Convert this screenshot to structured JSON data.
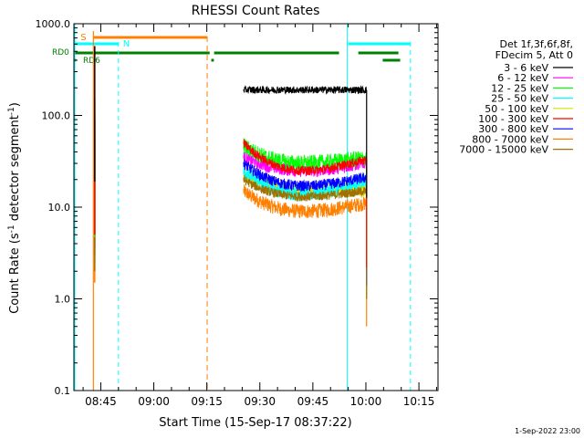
{
  "chart_data": {
    "type": "line",
    "title": "RHESSI Count Rates",
    "xlabel": "Start Time (15-Sep-17 08:37:22)",
    "ylabel_main": "Count Rate (s",
    "ylabel_sup": "-1",
    "ylabel_tail": " detector segment",
    "ylabel_sup2": "-1",
    "ylabel_close": ")",
    "y_scale": "log",
    "ylim": [
      0.1,
      1000
    ],
    "xlim_minutes": [
      517.4,
      620.4
    ],
    "x_ticks": [
      {
        "label": "08:45",
        "minute": 525
      },
      {
        "label": "09:00",
        "minute": 540
      },
      {
        "label": "09:15",
        "minute": 555
      },
      {
        "label": "09:30",
        "minute": 570
      },
      {
        "label": "09:45",
        "minute": 585
      },
      {
        "label": "10:00",
        "minute": 600
      },
      {
        "label": "10:15",
        "minute": 615
      }
    ],
    "y_ticks": [
      {
        "label": "1000.0",
        "value": 1000
      },
      {
        "label": "100.0",
        "value": 100
      },
      {
        "label": "10.0",
        "value": 10
      },
      {
        "label": "1.0",
        "value": 1
      },
      {
        "label": "0.1",
        "value": 0.1
      }
    ],
    "legend_header": [
      "Det 1f,3f,6f,8f,",
      "FDecim 5, Att 0"
    ],
    "legend_placement": "right",
    "series": [
      {
        "name": "3 - 6 keV",
        "color": "#000000",
        "start": 190,
        "mid": 190,
        "end": 190,
        "noise": 0.04
      },
      {
        "name": "6 - 12 keV",
        "color": "#ff00ff",
        "start": 35,
        "mid": 25,
        "end": 31,
        "noise": 0.07
      },
      {
        "name": "12 - 25 keV",
        "color": "#00ff00",
        "start": 47,
        "mid": 30,
        "end": 34,
        "noise": 0.09
      },
      {
        "name": "25 - 50 keV",
        "color": "#00ffff",
        "start": 25,
        "mid": 14,
        "end": 20,
        "noise": 0.08
      },
      {
        "name": "50 - 100 keV",
        "color": "#dddd00",
        "start": 22,
        "mid": 15,
        "end": 15,
        "noise": 0.08
      },
      {
        "name": "100 - 300 keV",
        "color": "#ff0000",
        "start": 50,
        "mid": 25,
        "end": 33,
        "noise": 0.05
      },
      {
        "name": "300 - 800 keV",
        "color": "#0000ff",
        "start": 30,
        "mid": 17,
        "end": 21,
        "noise": 0.06
      },
      {
        "name": "800 - 7000 keV",
        "color": "#ff8000",
        "start": 15,
        "mid": 9,
        "end": 11,
        "noise": 0.08
      },
      {
        "name": "7000 - 15000 keV",
        "color": "#a07000",
        "start": 20,
        "mid": 13,
        "end": 15,
        "noise": 0.05
      }
    ],
    "data_interval_minutes": [
      565.4,
      600.2
    ],
    "saa_interval_minutes": [
      522.9,
      555.1
    ],
    "night_intervals_minutes": [
      [
        517.4,
        530.0
      ],
      [
        594.7,
        612.6
      ]
    ],
    "flag_labels": {
      "saa": "S",
      "night": "N",
      "rd0": "RD0",
      "rd6": "RD6"
    },
    "colors": {
      "axis": "#000000",
      "saa": "#ff8000",
      "night": "#00ffff",
      "flags": "#008000"
    }
  },
  "footer": {
    "timestamp": "1-Sep-2022 23:00"
  }
}
